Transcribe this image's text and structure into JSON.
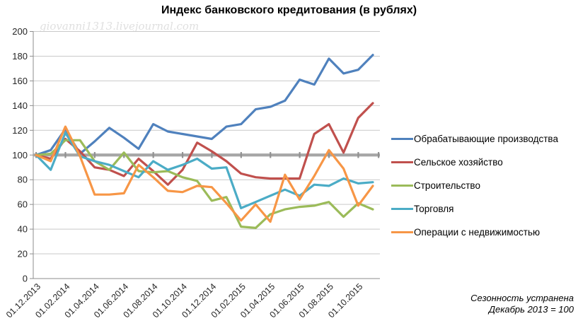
{
  "title": "Индекс банковского кредитования (в рублях)",
  "watermark": "giovanni1313.livejournal.com",
  "footnote": {
    "line1": "Сезонность устранена",
    "line2": "Декабрь 2013 = 100"
  },
  "chart_data": {
    "type": "line",
    "title": "Индекс банковского кредитования (в рублях)",
    "categories": [
      "01.12.2013",
      "01.01.2014",
      "01.02.2014",
      "01.03.2014",
      "01.04.2014",
      "01.05.2014",
      "01.06.2014",
      "01.07.2014",
      "01.08.2014",
      "01.09.2014",
      "01.10.2014",
      "01.11.2014",
      "01.12.2014",
      "01.01.2015",
      "01.02.2015",
      "01.03.2015",
      "01.04.2015",
      "01.05.2015",
      "01.06.2015",
      "01.07.2015",
      "01.08.2015",
      "01.09.2015",
      "01.10.2015",
      "01.11.2015"
    ],
    "x_axis_tick_labels": [
      "01.12.2013",
      "01.02.2014",
      "01.04.2014",
      "01.06.2014",
      "01.08.2014",
      "01.10.2014",
      "01.12.2014",
      "01.02.2015",
      "01.04.2015",
      "01.06.2015",
      "01.08.2015",
      "01.10.2015"
    ],
    "x_tick_every": 2,
    "ylim": [
      0,
      200
    ],
    "ytick_step": 20,
    "grid": true,
    "legend_position": "right",
    "baseline": {
      "value": 100,
      "color": "#A6A6A6"
    },
    "axis_color": "#8E8E8E",
    "grid_color": "#C9C9C9",
    "tick_label_color": "#262626",
    "series": [
      {
        "name": "Обрабатывающие производства",
        "color": "#4F81BD",
        "values": [
          100,
          104,
          121,
          101,
          111,
          122,
          114,
          105,
          125,
          119,
          117,
          115,
          113,
          123,
          125,
          137,
          139,
          144,
          161,
          157,
          178,
          166,
          169,
          181
        ]
      },
      {
        "name": "Сельское хозяйство",
        "color": "#C0504D",
        "values": [
          100,
          97,
          113,
          103,
          90,
          88,
          83,
          97,
          87,
          76,
          88,
          110,
          103,
          95,
          85,
          82,
          81,
          81,
          81,
          117,
          125,
          102,
          130,
          142
        ]
      },
      {
        "name": "Строительство",
        "color": "#9BBB59",
        "values": [
          100,
          101,
          112,
          112,
          95,
          88,
          102,
          87,
          86,
          87,
          82,
          79,
          63,
          66,
          42,
          41,
          52,
          56,
          58,
          59,
          62,
          50,
          61,
          56
        ]
      },
      {
        "name": "Торговля",
        "color": "#4BACC6",
        "values": [
          100,
          88,
          118,
          99,
          95,
          92,
          87,
          82,
          95,
          88,
          92,
          97,
          89,
          90,
          57,
          62,
          67,
          72,
          67,
          76,
          75,
          81,
          77,
          78
        ]
      },
      {
        "name": "Операции с недвижимостью",
        "color": "#F79646",
        "values": [
          100,
          95,
          123,
          99,
          68,
          68,
          69,
          92,
          82,
          71,
          70,
          75,
          74,
          61,
          47,
          60,
          46,
          84,
          64,
          83,
          104,
          89,
          59,
          75
        ]
      }
    ]
  }
}
